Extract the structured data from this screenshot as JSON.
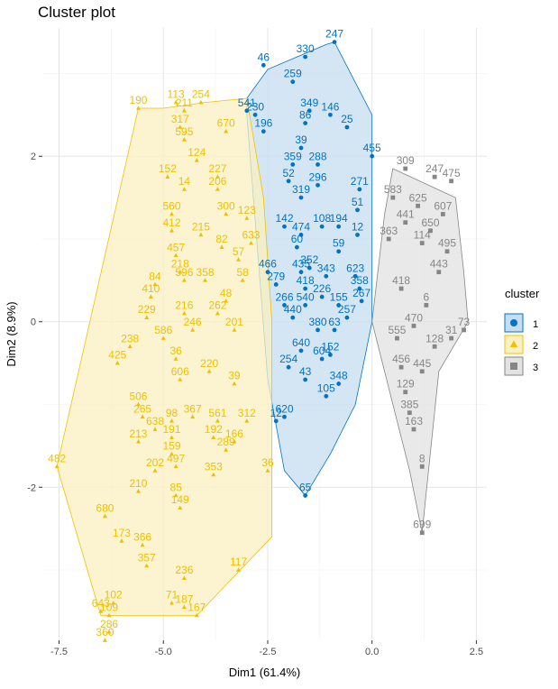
{
  "chart_data": {
    "type": "scatter",
    "title": "Cluster plot",
    "xlabel": "Dim1 (61.4%)",
    "ylabel": "Dim2 (8.9%)",
    "xlim": [
      -7.9,
      2.75
    ],
    "ylim": [
      -3.85,
      3.55
    ],
    "x_ticks": [
      -7.5,
      -5.0,
      -2.5,
      0.0,
      2.5
    ],
    "x_tick_labels": [
      "-7.5",
      "-5.0",
      "-2.5",
      "0.0",
      "2.5"
    ],
    "y_ticks": [
      -2,
      0,
      2
    ],
    "y_tick_labels": [
      "-2",
      "0",
      "2"
    ],
    "grid": true,
    "legend_title": "cluster",
    "legend_position": "right",
    "series": [
      {
        "name": "1",
        "color": "#0073C2",
        "fill": "#C6DDF0",
        "marker": "circle",
        "hull": [
          [
            -1.1,
            3.35
          ],
          [
            -0.9,
            3.38
          ],
          [
            0.0,
            2.5
          ],
          [
            0.0,
            0.0
          ],
          [
            -0.4,
            -1.0
          ],
          [
            -1.0,
            -1.6
          ],
          [
            -1.6,
            -2.1
          ],
          [
            -2.1,
            -1.8
          ],
          [
            -2.5,
            -0.7
          ],
          [
            -3.0,
            2.5
          ],
          [
            -3.0,
            2.7
          ],
          [
            -2.5,
            3.05
          ],
          [
            -1.8,
            3.2
          ]
        ],
        "points": [
          {
            "x": -0.9,
            "y": 3.38,
            "label": "247"
          },
          {
            "x": -1.6,
            "y": 3.2,
            "label": "330"
          },
          {
            "x": -2.6,
            "y": 3.1,
            "label": "46"
          },
          {
            "x": -1.9,
            "y": 2.9,
            "label": "259"
          },
          {
            "x": -1.5,
            "y": 2.55,
            "label": "349"
          },
          {
            "x": -1.0,
            "y": 2.5,
            "label": "146"
          },
          {
            "x": -1.6,
            "y": 2.4,
            "label": "86"
          },
          {
            "x": -0.6,
            "y": 2.35,
            "label": "25"
          },
          {
            "x": -2.8,
            "y": 2.5,
            "label": "230"
          },
          {
            "x": -3.0,
            "y": 2.55,
            "label": "541"
          },
          {
            "x": -2.6,
            "y": 2.3,
            "label": "196"
          },
          {
            "x": -1.7,
            "y": 2.1,
            "label": "39"
          },
          {
            "x": 0.0,
            "y": 2.0,
            "label": "455"
          },
          {
            "x": -1.3,
            "y": 1.9,
            "label": "288"
          },
          {
            "x": -1.9,
            "y": 1.9,
            "label": "359"
          },
          {
            "x": -2.0,
            "y": 1.7,
            "label": "52"
          },
          {
            "x": -1.3,
            "y": 1.65,
            "label": "296"
          },
          {
            "x": -1.7,
            "y": 1.5,
            "label": "319"
          },
          {
            "x": -0.3,
            "y": 1.6,
            "label": "271"
          },
          {
            "x": -0.35,
            "y": 1.35,
            "label": "51"
          },
          {
            "x": -0.8,
            "y": 1.15,
            "label": "194"
          },
          {
            "x": -1.2,
            "y": 1.15,
            "label": "108"
          },
          {
            "x": -1.7,
            "y": 1.05,
            "label": "474"
          },
          {
            "x": -1.8,
            "y": 0.9,
            "label": "60"
          },
          {
            "x": -0.35,
            "y": 1.05,
            "label": "12"
          },
          {
            "x": -0.8,
            "y": 0.85,
            "label": "59"
          },
          {
            "x": -2.1,
            "y": 1.15,
            "label": "142"
          },
          {
            "x": -1.7,
            "y": 0.6,
            "label": "435"
          },
          {
            "x": -0.4,
            "y": 0.55,
            "label": "623"
          },
          {
            "x": -0.3,
            "y": 0.4,
            "label": "358"
          },
          {
            "x": -2.5,
            "y": 0.6,
            "label": "466"
          },
          {
            "x": -0.25,
            "y": 0.25,
            "label": "267"
          },
          {
            "x": -1.6,
            "y": 0.4,
            "label": "418"
          },
          {
            "x": -1.2,
            "y": 0.3,
            "label": "226"
          },
          {
            "x": -2.1,
            "y": 0.2,
            "label": "266"
          },
          {
            "x": -0.6,
            "y": 0.05,
            "label": "257"
          },
          {
            "x": -1.6,
            "y": 0.2,
            "label": "540"
          },
          {
            "x": -1.9,
            "y": 0.05,
            "label": "440"
          },
          {
            "x": -1.3,
            "y": -0.1,
            "label": "380"
          },
          {
            "x": -1.7,
            "y": -0.35,
            "label": "640"
          },
          {
            "x": -1.0,
            "y": -0.4,
            "label": "152"
          },
          {
            "x": -1.2,
            "y": -0.45,
            "label": "604"
          },
          {
            "x": -2.0,
            "y": -0.55,
            "label": "254"
          },
          {
            "x": -1.6,
            "y": -0.7,
            "label": "43"
          },
          {
            "x": -0.8,
            "y": -0.75,
            "label": "348"
          },
          {
            "x": -1.1,
            "y": -0.9,
            "label": "105"
          },
          {
            "x": -2.1,
            "y": -1.15,
            "label": "620"
          },
          {
            "x": -2.3,
            "y": -1.2,
            "label": "12"
          },
          {
            "x": -1.6,
            "y": -2.1,
            "label": "65"
          },
          {
            "x": -2.3,
            "y": 0.45,
            "label": "279"
          },
          {
            "x": -0.8,
            "y": 0.2,
            "label": "155"
          },
          {
            "x": -1.5,
            "y": 0.65,
            "label": "352"
          },
          {
            "x": -1.1,
            "y": 0.55,
            "label": "343"
          },
          {
            "x": -0.9,
            "y": -0.1,
            "label": "63"
          }
        ]
      },
      {
        "name": "2",
        "color": "#EFC000",
        "fill": "#FBF0C2",
        "marker": "triangle",
        "hull": [
          [
            -7.55,
            -1.75
          ],
          [
            -6.5,
            -3.55
          ],
          [
            -4.2,
            -3.55
          ],
          [
            -2.4,
            -2.6
          ],
          [
            -2.4,
            0.0
          ],
          [
            -2.6,
            1.5
          ],
          [
            -3.0,
            2.7
          ],
          [
            -4.0,
            2.65
          ],
          [
            -5.0,
            2.58
          ],
          [
            -5.6,
            2.58
          ]
        ],
        "points": [
          {
            "x": -5.6,
            "y": 2.58,
            "label": "190"
          },
          {
            "x": -4.7,
            "y": 2.65,
            "label": "113"
          },
          {
            "x": -4.1,
            "y": 2.65,
            "label": "254"
          },
          {
            "x": -4.5,
            "y": 2.55,
            "label": "211"
          },
          {
            "x": -4.6,
            "y": 2.35,
            "label": "317"
          },
          {
            "x": -4.5,
            "y": 2.2,
            "label": "595"
          },
          {
            "x": -3.5,
            "y": 2.3,
            "label": "670"
          },
          {
            "x": -4.2,
            "y": 1.95,
            "label": "124"
          },
          {
            "x": -4.9,
            "y": 1.75,
            "label": "152"
          },
          {
            "x": -4.5,
            "y": 1.6,
            "label": "14"
          },
          {
            "x": -3.7,
            "y": 1.75,
            "label": "227"
          },
          {
            "x": -3.7,
            "y": 1.6,
            "label": "206"
          },
          {
            "x": -4.8,
            "y": 1.3,
            "label": "560"
          },
          {
            "x": -3.5,
            "y": 1.3,
            "label": "300"
          },
          {
            "x": -3.0,
            "y": 1.25,
            "label": "123"
          },
          {
            "x": -4.8,
            "y": 1.1,
            "label": "412"
          },
          {
            "x": -4.1,
            "y": 1.05,
            "label": "215"
          },
          {
            "x": -3.6,
            "y": 0.9,
            "label": "82"
          },
          {
            "x": -4.7,
            "y": 0.8,
            "label": "457"
          },
          {
            "x": -2.9,
            "y": 0.95,
            "label": "633"
          },
          {
            "x": -4.6,
            "y": 0.6,
            "label": "218"
          },
          {
            "x": -3.2,
            "y": 0.75,
            "label": "57"
          },
          {
            "x": -5.2,
            "y": 0.45,
            "label": "84"
          },
          {
            "x": -4.5,
            "y": 0.5,
            "label": "596"
          },
          {
            "x": -4.0,
            "y": 0.5,
            "label": "358"
          },
          {
            "x": -5.3,
            "y": 0.3,
            "label": "410"
          },
          {
            "x": -3.1,
            "y": 0.5,
            "label": "58"
          },
          {
            "x": -3.5,
            "y": 0.25,
            "label": "48"
          },
          {
            "x": -5.4,
            "y": 0.05,
            "label": "229"
          },
          {
            "x": -4.5,
            "y": 0.1,
            "label": "216"
          },
          {
            "x": -3.7,
            "y": 0.1,
            "label": "262"
          },
          {
            "x": -5.8,
            "y": -0.3,
            "label": "238"
          },
          {
            "x": -5.0,
            "y": -0.2,
            "label": "586"
          },
          {
            "x": -4.3,
            "y": -0.1,
            "label": "246"
          },
          {
            "x": -3.3,
            "y": -0.1,
            "label": "201"
          },
          {
            "x": -6.1,
            "y": -0.5,
            "label": "425"
          },
          {
            "x": -4.7,
            "y": -0.45,
            "label": "36"
          },
          {
            "x": -3.9,
            "y": -0.6,
            "label": "220"
          },
          {
            "x": -4.6,
            "y": -0.7,
            "label": "606"
          },
          {
            "x": -3.3,
            "y": -0.75,
            "label": "39"
          },
          {
            "x": -5.6,
            "y": -1.0,
            "label": "506"
          },
          {
            "x": -5.5,
            "y": -1.15,
            "label": "265"
          },
          {
            "x": -4.8,
            "y": -1.2,
            "label": "98"
          },
          {
            "x": -4.3,
            "y": -1.15,
            "label": "367"
          },
          {
            "x": -3.7,
            "y": -1.2,
            "label": "561"
          },
          {
            "x": -3.0,
            "y": -1.2,
            "label": "312"
          },
          {
            "x": -5.2,
            "y": -1.3,
            "label": "638"
          },
          {
            "x": -5.6,
            "y": -1.45,
            "label": "213"
          },
          {
            "x": -4.8,
            "y": -1.4,
            "label": "191"
          },
          {
            "x": -3.8,
            "y": -1.4,
            "label": "192"
          },
          {
            "x": -3.3,
            "y": -1.45,
            "label": "166"
          },
          {
            "x": -4.8,
            "y": -1.6,
            "label": "159"
          },
          {
            "x": -4.7,
            "y": -1.75,
            "label": "497"
          },
          {
            "x": -5.2,
            "y": -1.8,
            "label": "202"
          },
          {
            "x": -3.5,
            "y": -1.55,
            "label": "289"
          },
          {
            "x": -3.8,
            "y": -1.85,
            "label": "353"
          },
          {
            "x": -5.6,
            "y": -2.05,
            "label": "210"
          },
          {
            "x": -4.7,
            "y": -2.1,
            "label": "85"
          },
          {
            "x": -4.6,
            "y": -2.25,
            "label": "149"
          },
          {
            "x": -2.5,
            "y": -1.8,
            "label": "36"
          },
          {
            "x": -6.4,
            "y": -2.35,
            "label": "680"
          },
          {
            "x": -6.0,
            "y": -2.65,
            "label": "173"
          },
          {
            "x": -5.5,
            "y": -2.7,
            "label": "366"
          },
          {
            "x": -5.4,
            "y": -2.95,
            "label": "357"
          },
          {
            "x": -4.5,
            "y": -3.1,
            "label": "236"
          },
          {
            "x": -3.2,
            "y": -3.0,
            "label": "117"
          },
          {
            "x": -7.55,
            "y": -1.75,
            "label": "482"
          },
          {
            "x": -6.2,
            "y": -3.4,
            "label": "102"
          },
          {
            "x": -6.5,
            "y": -3.5,
            "label": "643"
          },
          {
            "x": -6.3,
            "y": -3.55,
            "label": "109"
          },
          {
            "x": -4.8,
            "y": -3.4,
            "label": "71"
          },
          {
            "x": -4.5,
            "y": -3.45,
            "label": "187"
          },
          {
            "x": -6.3,
            "y": -3.75,
            "label": "286"
          },
          {
            "x": -6.4,
            "y": -3.85,
            "label": "360"
          },
          {
            "x": -4.2,
            "y": -3.55,
            "label": "167"
          }
        ]
      },
      {
        "name": "3",
        "color": "#868686",
        "fill": "#E2E2E2",
        "marker": "square",
        "hull": [
          [
            0.5,
            1.85
          ],
          [
            2.0,
            1.5
          ],
          [
            2.2,
            0.6
          ],
          [
            2.3,
            0.0
          ],
          [
            1.6,
            -0.6
          ],
          [
            1.2,
            -2.55
          ],
          [
            0.9,
            -1.8
          ],
          [
            0.0,
            0.0
          ],
          [
            0.3,
            1.3
          ]
        ],
        "points": [
          {
            "x": 0.8,
            "y": 1.85,
            "label": "309"
          },
          {
            "x": 1.5,
            "y": 1.75,
            "label": "247"
          },
          {
            "x": 1.9,
            "y": 1.7,
            "label": "475"
          },
          {
            "x": 0.5,
            "y": 1.5,
            "label": "583"
          },
          {
            "x": 1.1,
            "y": 1.4,
            "label": "625"
          },
          {
            "x": 1.7,
            "y": 1.3,
            "label": "607"
          },
          {
            "x": 0.8,
            "y": 1.2,
            "label": "441"
          },
          {
            "x": 1.4,
            "y": 1.1,
            "label": "650"
          },
          {
            "x": 0.4,
            "y": 1.0,
            "label": "363"
          },
          {
            "x": 1.2,
            "y": 0.95,
            "label": "114"
          },
          {
            "x": 1.8,
            "y": 0.85,
            "label": "495"
          },
          {
            "x": 1.6,
            "y": 0.6,
            "label": "443"
          },
          {
            "x": 0.7,
            "y": 0.4,
            "label": "418"
          },
          {
            "x": 1.3,
            "y": 0.2,
            "label": "6"
          },
          {
            "x": 0.6,
            "y": -0.2,
            "label": "555"
          },
          {
            "x": 1.5,
            "y": -0.3,
            "label": "128"
          },
          {
            "x": 0.7,
            "y": -0.55,
            "label": "456"
          },
          {
            "x": 1.2,
            "y": -0.6,
            "label": "445"
          },
          {
            "x": 0.8,
            "y": -0.85,
            "label": "129"
          },
          {
            "x": 0.9,
            "y": -1.1,
            "label": "385"
          },
          {
            "x": 1.0,
            "y": -1.3,
            "label": "163"
          },
          {
            "x": 1.2,
            "y": -1.75,
            "label": "8"
          },
          {
            "x": 1.2,
            "y": -2.55,
            "label": "699"
          },
          {
            "x": 2.2,
            "y": -0.1,
            "label": "73"
          },
          {
            "x": 1.9,
            "y": -0.2,
            "label": "31"
          },
          {
            "x": 1.0,
            "y": -0.05,
            "label": "470"
          }
        ]
      }
    ]
  }
}
